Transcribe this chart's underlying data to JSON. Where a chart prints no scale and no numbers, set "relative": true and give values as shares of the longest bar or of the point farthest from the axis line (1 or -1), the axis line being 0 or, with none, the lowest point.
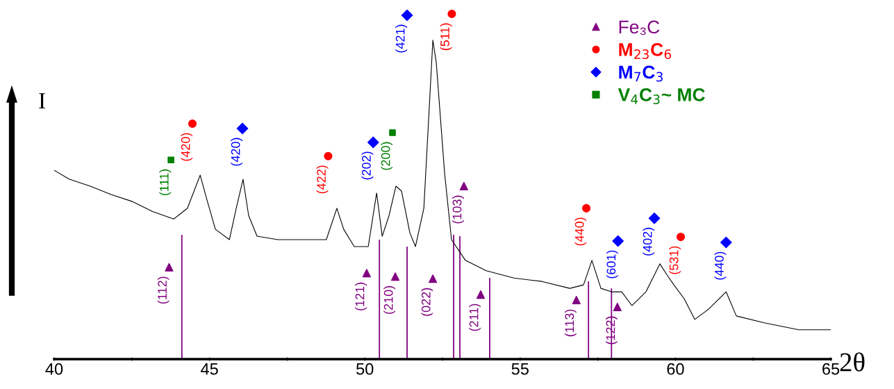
{
  "chart_data": {
    "type": "line",
    "relative": true,
    "xlabel": "2θ",
    "ylabel": "I",
    "xlim": [
      40,
      65
    ],
    "xticks": [
      40,
      {
        "value": 42.5,
        "label": null
      },
      45,
      {
        "value": 47.5,
        "label": null
      },
      50,
      {
        "value": 52.5,
        "label": null
      },
      55,
      {
        "value": 57.5,
        "label": null
      },
      60,
      {
        "value": 62.5,
        "label": null
      },
      65
    ],
    "grid": false,
    "legend": "top right",
    "series": [
      {
        "color": "#000000",
        "marker": "none",
        "x": [
          40,
          40.49,
          41.16,
          41.83,
          42.5,
          43.18,
          43.85,
          44.29,
          44.7,
          44.9,
          45.19,
          45.64,
          45.86,
          46.08,
          46.26,
          46.53,
          47.2,
          47.87,
          48.76,
          49.1,
          49.32,
          49.66,
          50.11,
          50.38,
          50.56,
          50.78,
          51.0,
          51.18,
          51.45,
          51.63,
          51.9,
          52.08,
          52.19,
          52.3,
          52.57,
          52.79,
          53.24,
          53.91,
          54.8,
          55.7,
          56.6,
          57.04,
          57.31,
          57.6,
          57.94,
          58.27,
          58.6,
          59.05,
          59.5,
          59.72,
          59.95,
          60.28,
          60.62,
          61.07,
          61.63,
          61.96,
          62.86,
          63.97,
          65
        ],
        "values": [
          0.547,
          0.521,
          0.501,
          0.477,
          0.457,
          0.427,
          0.406,
          0.437,
          0.533,
          0.467,
          0.376,
          0.346,
          0.437,
          0.521,
          0.416,
          0.356,
          0.346,
          0.346,
          0.346,
          0.437,
          0.376,
          0.326,
          0.326,
          0.481,
          0.356,
          0.416,
          0.501,
          0.487,
          0.366,
          0.326,
          0.437,
          0.738,
          0.924,
          0.859,
          0.537,
          0.346,
          0.286,
          0.256,
          0.235,
          0.225,
          0.205,
          0.215,
          0.286,
          0.205,
          0.195,
          0.195,
          0.155,
          0.195,
          0.276,
          0.245,
          0.215,
          0.175,
          0.115,
          0.145,
          0.195,
          0.125,
          0.105,
          0.085,
          0.085
        ]
      },
      {
        "type": "bar",
        "color": "#800080",
        "x": [
          44.11,
          50.47,
          51.36,
          52.86,
          53.06,
          54.02,
          57.2,
          57.94
        ],
        "values": [
          0.36,
          0.346,
          0.326,
          0.36,
          0.356,
          0.235,
          0.225,
          0.205
        ]
      },
      {
        "type": "scatter",
        "name": "Fe₃C",
        "color": "#800080",
        "marker": "triangle",
        "x": [
          53.19,
          43.7,
          50.06,
          50.98,
          52.19,
          53.73,
          56.81,
          58.13
        ],
        "values": [
          0.501,
          0.266,
          0.249,
          0.239,
          0.233,
          0.187,
          0.171,
          0.151
        ]
      },
      {
        "type": "scatter",
        "name": "M$_{23}$C$_{6}$",
        "color": "#ff0000",
        "marker": "circle",
        "x": [
          44.45,
          48.82,
          52.8,
          57.13,
          60.17
        ],
        "values": [
          0.682,
          0.588,
          1.0,
          0.437,
          0.354
        ]
      },
      {
        "type": "scatter",
        "name": "M$_{7}$C$_{3}$",
        "color": "#0000ff",
        "marker": "diamond",
        "x": [
          46.06,
          50.27,
          51.36,
          58.15,
          59.32,
          61.63
        ],
        "values": [
          0.668,
          0.628,
          0.996,
          0.342,
          0.408,
          0.338
        ]
      },
      {
        "type": "scatter",
        "name": "V$_{4}$C$_{3}$~ MC",
        "color": "#008000",
        "marker": "square",
        "x": [
          43.76,
          50.89
        ],
        "values": [
          0.577,
          0.656
        ]
      }
    ],
    "annotations": [
      {
        "text": "(103)",
        "x": 53.19,
        "y": 0.501
      },
      {
        "text": "(112)",
        "x": 43.7,
        "y": 0.266
      },
      {
        "text": "(121)",
        "x": 50.06,
        "y": 0.249
      },
      {
        "text": "(210)",
        "x": 50.98,
        "y": 0.239
      },
      {
        "text": "(022)",
        "x": 52.19,
        "y": 0.233
      },
      {
        "text": "(211)",
        "x": 53.73,
        "y": 0.187
      },
      {
        "text": "(113)",
        "x": 56.81,
        "y": 0.171
      },
      {
        "text": "(122)",
        "x": 58.13,
        "y": 0.151
      },
      {
        "text": "(420)",
        "x": 44.45,
        "y": 0.682
      },
      {
        "text": "(422)",
        "x": 48.82,
        "y": 0.588
      },
      {
        "text": "(511)",
        "x": 52.8,
        "y": 1.0
      },
      {
        "text": "(440)",
        "x": 57.13,
        "y": 0.437
      },
      {
        "text": "(531)",
        "x": 60.17,
        "y": 0.354
      },
      {
        "text": "(420)",
        "x": 46.06,
        "y": 0.668
      },
      {
        "text": "(202)",
        "x": 50.27,
        "y": 0.628
      },
      {
        "text": "(421)",
        "x": 51.36,
        "y": 0.996
      },
      {
        "text": "(601)",
        "x": 58.15,
        "y": 0.342
      },
      {
        "text": "(402)",
        "x": 59.32,
        "y": 0.408
      },
      {
        "text": "(440)",
        "x": 61.63,
        "y": 0.338
      },
      {
        "text": "(111)",
        "x": 43.76,
        "y": 0.577
      },
      {
        "text": "(200)",
        "x": 50.89,
        "y": 0.656
      }
    ]
  }
}
